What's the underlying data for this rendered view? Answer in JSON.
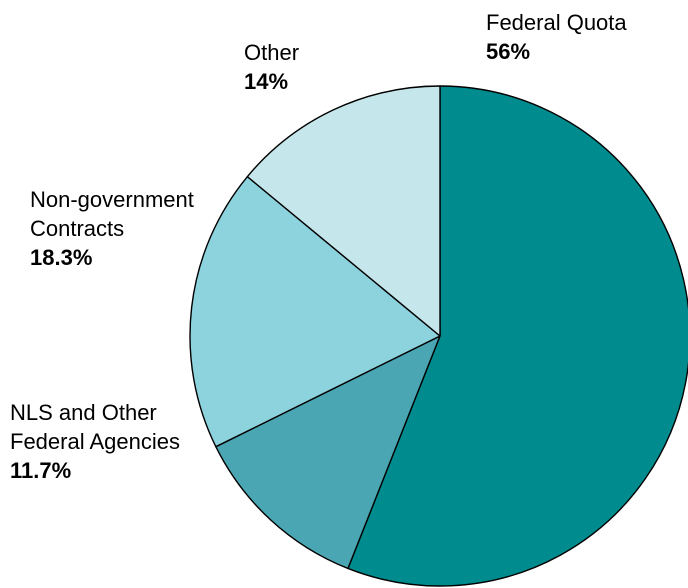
{
  "chart_data": {
    "type": "pie",
    "title": "",
    "slices": [
      {
        "name_lines": [
          "Federal Quota"
        ],
        "pct_label": "56%",
        "value": 56,
        "color": "#008b8f"
      },
      {
        "name_lines": [
          "NLS and Other",
          "Federal Agencies"
        ],
        "pct_label": "11.7%",
        "value": 11.7,
        "color": "#4ba6b3"
      },
      {
        "name_lines": [
          "Non-government",
          "Contracts"
        ],
        "pct_label": "18.3%",
        "value": 18.3,
        "color": "#8dd3de"
      },
      {
        "name_lines": [
          "Other"
        ],
        "pct_label": "14%",
        "value": 14,
        "color": "#c5e7ec"
      }
    ],
    "start_angle_deg": 0,
    "direction": "clockwise",
    "legend": "none",
    "slice_outline_color": "#000000"
  }
}
